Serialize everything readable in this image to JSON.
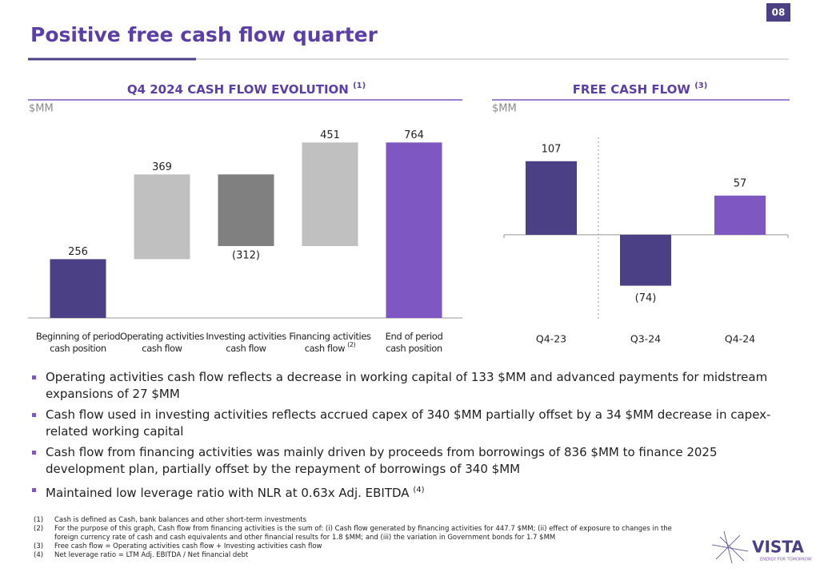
{
  "page_number": "08",
  "title": "Positive free cash flow quarter",
  "chart_data": [
    {
      "type": "waterfall",
      "title": "Q4 2024 CASH FLOW EVOLUTION",
      "title_note": "(1)",
      "y_label": "$MM",
      "categories": [
        [
          "Beginning of period",
          "cash position"
        ],
        [
          "Operating activities",
          "cash flow"
        ],
        [
          "Investing activities",
          "cash flow"
        ],
        [
          "Financing activities",
          "cash flow"
        ],
        [
          "End of period",
          "cash position"
        ]
      ],
      "category_notes": [
        null,
        null,
        null,
        "(2)",
        null
      ],
      "measure": [
        "total",
        "relative",
        "relative",
        "relative",
        "total"
      ],
      "values": [
        256,
        369,
        -312,
        451,
        764
      ],
      "value_labels": [
        "256",
        "369",
        "(312)",
        "451",
        "764"
      ],
      "colors": [
        "#4b3f86",
        "#c0c0c0",
        "#808080",
        "#c0c0c0",
        "#7e57c2"
      ],
      "ylim": [
        0,
        800
      ]
    },
    {
      "type": "bar",
      "title": "FREE CASH FLOW",
      "title_note": "(3)",
      "y_label": "$MM",
      "categories": [
        "Q4-23",
        "Q3-24",
        "Q4-24"
      ],
      "values": [
        107,
        -74,
        57
      ],
      "value_labels": [
        "107",
        "(74)",
        "57"
      ],
      "colors": [
        "#4b3f86",
        "#4b3f86",
        "#7e57c2"
      ],
      "ylim": [
        -100,
        130
      ]
    }
  ],
  "bullets": [
    {
      "text": "Operating activities cash flow reflects a decrease in working capital of 133 $MM and advanced payments for midstream expansions of 27 $MM"
    },
    {
      "text": "Cash flow used in investing activities reflects accrued capex of 340 $MM partially offset by a 34 $MM decrease in capex-related working capital"
    },
    {
      "text": "Cash flow from financing activities was mainly driven by proceeds from borrowings of 836 $MM to finance 2025 development plan, partially offset by the repayment of borrowings of 340 $MM"
    },
    {
      "text": "Maintained low leverage ratio with NLR at 0.63x Adj. EBITDA",
      "note": "(4)"
    }
  ],
  "footnotes": [
    {
      "marker": "(1)",
      "text": "Cash is defined as Cash, bank balances and other short-term investments"
    },
    {
      "marker": "(2)",
      "text": "For the purpose of this graph, Cash flow from financing activities is the sum of: (i) Cash flow generated by financing activities for 447.7 $MM; (ii) effect of exposure to changes in the foreign currency rate of cash and cash equivalents and other financial results for 1.8 $MM; and (iii) the variation in Government bonds for 1.7 $MM"
    },
    {
      "marker": "(3)",
      "text": "Free cash flow = Operating activities cash flow + Investing activities cash flow"
    },
    {
      "marker": "(4)",
      "text": "Net leverage ratio = LTM Adj. EBITDA / Net financial debt"
    }
  ],
  "logo": {
    "name": "VISTA",
    "tagline": "ENERGY FOR TOMORROW"
  }
}
